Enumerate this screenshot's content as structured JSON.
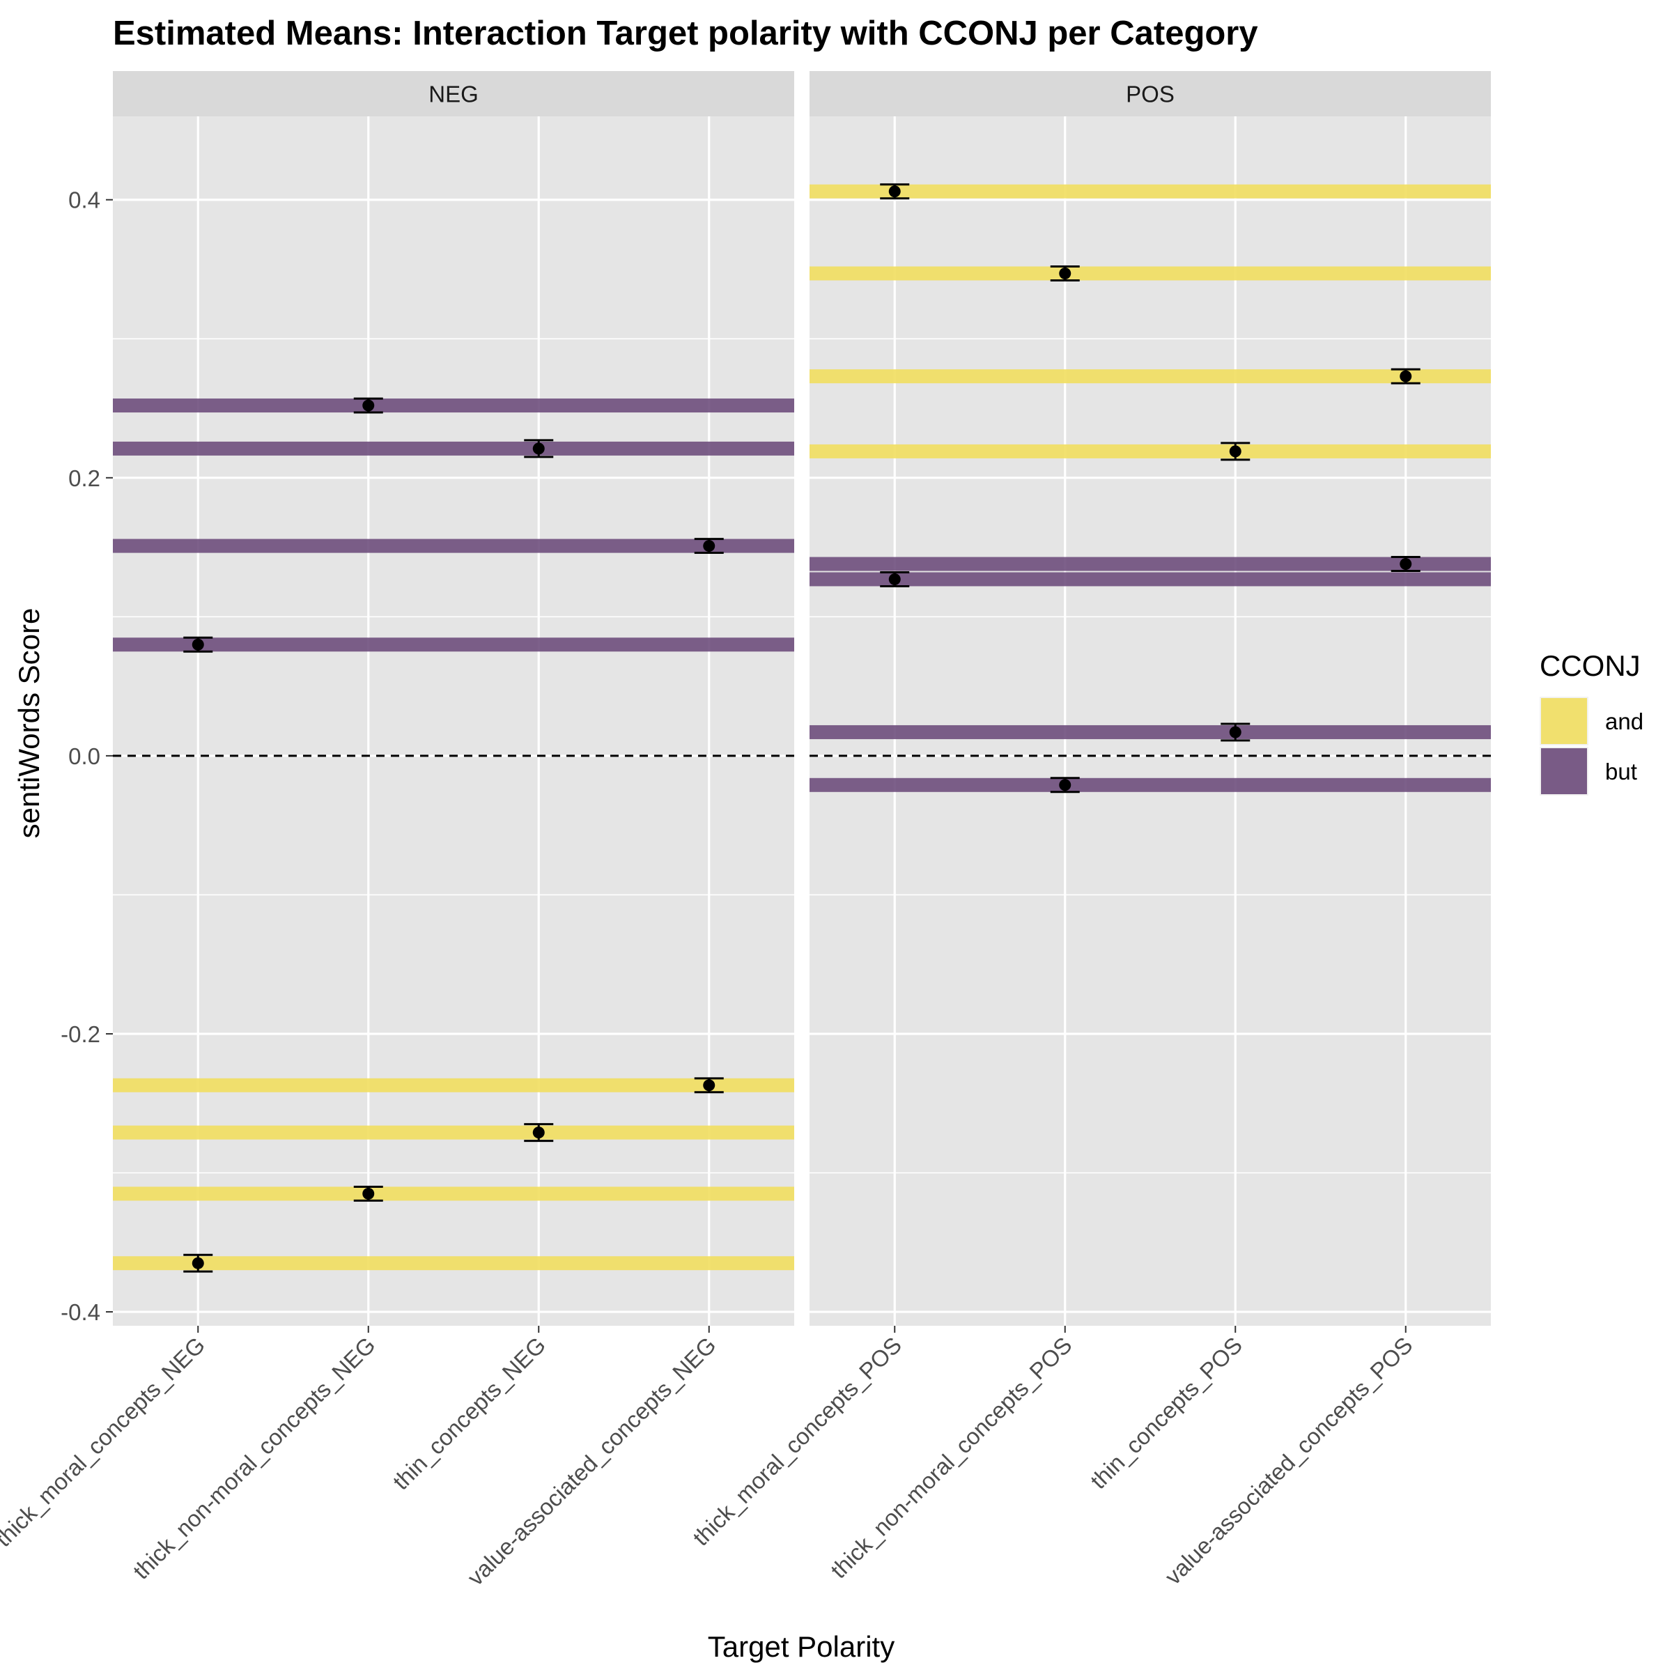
{
  "chart_data": {
    "type": "scatter",
    "title": "Estimated Means: Interaction Target polarity with CCONJ per Category",
    "xlabel": "Target Polarity",
    "ylabel": "sentiWords Score",
    "ylim": [
      -0.41,
      0.46
    ],
    "yticks": [
      "-0.4",
      "-0.2",
      "0.0",
      "0.2",
      "0.4"
    ],
    "reference_line": 0.0,
    "legend": {
      "title": "CCONJ",
      "position": "right",
      "entries": [
        {
          "label": "and",
          "color": "#f1de5f"
        },
        {
          "label": "but",
          "color": "#6b4a7a"
        }
      ]
    },
    "panels": [
      {
        "name": "NEG",
        "categories": [
          "thick_moral_concepts_NEG",
          "thick_non-moral_concepts_NEG",
          "thin_concepts_NEG",
          "value-associated_concepts_NEG"
        ],
        "series": [
          {
            "name": "and",
            "values": [
              -0.365,
              -0.315,
              -0.271,
              -0.237
            ],
            "errors": [
              0.006,
              0.005,
              0.006,
              0.005
            ]
          },
          {
            "name": "but",
            "values": [
              0.08,
              0.252,
              0.221,
              0.151
            ],
            "errors": [
              0.005,
              0.005,
              0.006,
              0.005
            ]
          }
        ]
      },
      {
        "name": "POS",
        "categories": [
          "thick_moral_concepts_POS",
          "thick_non-moral_concepts_POS",
          "thin_concepts_POS",
          "value-associated_concepts_POS"
        ],
        "series": [
          {
            "name": "and",
            "values": [
              0.406,
              0.347,
              0.219,
              0.273
            ],
            "errors": [
              0.005,
              0.005,
              0.006,
              0.005
            ]
          },
          {
            "name": "but",
            "values": [
              0.127,
              -0.021,
              0.017,
              0.138
            ],
            "errors": [
              0.005,
              0.005,
              0.006,
              0.005
            ]
          }
        ]
      }
    ],
    "grid": true
  }
}
